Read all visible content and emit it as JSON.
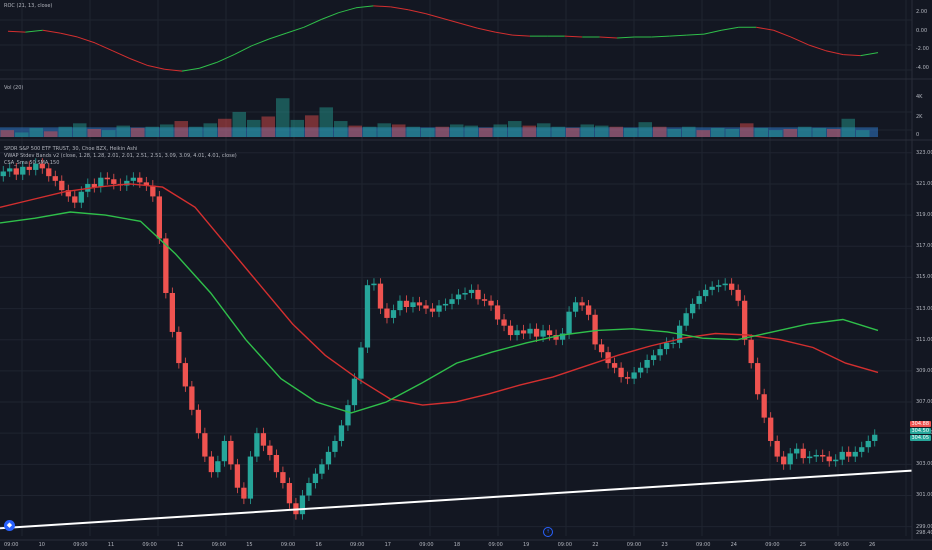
{
  "colors": {
    "background": "#131722",
    "grid": "#1f2430",
    "up": "#26a69a",
    "down": "#ef5350",
    "text": "#b2b5be",
    "trendline": "#ffffff",
    "ma_red": "#d32f2f",
    "ma_green": "#2fbf4a",
    "volume_ma": "#2f79c9"
  },
  "icons": [
    "logo-icon",
    "marker-icon"
  ],
  "panes": {
    "roc": {
      "title": "ROC (21, 13, close)",
      "axis_labels": [
        "2.00",
        "0.00",
        "-2.00",
        "-4.00"
      ]
    },
    "volume": {
      "title": "Vol (20)",
      "axis_labels": [
        "4K",
        "2K",
        "0"
      ]
    },
    "price": {
      "title": "SPDR S&P 500 ETF TRUST, 30, Choe BZX, Heikin Ashi",
      "subtitle": "VWAP Stdev Bands v2 (close, 1.28, 1.28, 2.01, 2.01, 2.51, 2.51, 3.09, 3.09, 4.01, 4.01, close)",
      "subtitle2": "CSA_Sma 50 SMA 150",
      "axis_labels": [
        "323.00",
        "321.00",
        "319.00",
        "317.00",
        "315.00",
        "313.00",
        "311.00",
        "309.00",
        "307.00",
        "305.00",
        "303.00",
        "301.00",
        "299.00",
        "298.40"
      ],
      "price_badges": [
        "304.88",
        "304.50",
        "304.05"
      ]
    }
  },
  "time_axis": {
    "labels": [
      "09:00",
      "10",
      "09:00",
      "11",
      "09:00",
      "12",
      "09:00",
      "15",
      "09:00",
      "16",
      "09:00",
      "17",
      "09:00",
      "18",
      "09:00",
      "19",
      "09:00",
      "22",
      "09:00",
      "23",
      "09:00",
      "24",
      "09:00",
      "25",
      "09:00",
      "26"
    ]
  },
  "chart_data": {
    "type": "candlestick",
    "title": "SPDR S&P 500 ETF TRUST, 30, Choe BZX, Heikin Ashi",
    "y_range": [
      298.4,
      323.5
    ],
    "trendline": {
      "from": 298.9,
      "to": 302.6
    },
    "price_series": [
      321.8,
      322.0,
      321.6,
      322.1,
      321.9,
      322.3,
      322.0,
      321.5,
      321.2,
      320.6,
      320.2,
      319.8,
      320.5,
      321.0,
      320.8,
      321.4,
      321.3,
      321.0,
      320.9,
      321.2,
      321.4,
      321.1,
      320.9,
      320.2,
      317.5,
      314.0,
      311.5,
      309.5,
      308.0,
      306.5,
      305.0,
      303.5,
      302.5,
      303.2,
      304.5,
      303.0,
      301.5,
      300.8,
      303.5,
      305.0,
      304.2,
      303.6,
      302.5,
      301.8,
      300.5,
      299.8,
      301.0,
      301.8,
      302.4,
      303.0,
      303.8,
      304.5,
      305.5,
      306.8,
      308.5,
      310.5,
      314.5,
      314.6,
      313.0,
      312.4,
      312.9,
      313.5,
      313.1,
      313.4,
      313.2,
      313.0,
      312.8,
      313.2,
      313.3,
      313.6,
      313.9,
      314.0,
      314.2,
      313.6,
      313.5,
      313.2,
      312.3,
      311.9,
      311.3,
      311.6,
      311.4,
      311.7,
      311.2,
      311.6,
      311.3,
      311.0,
      311.4,
      312.8,
      313.4,
      313.2,
      312.6,
      310.7,
      310.2,
      309.5,
      309.2,
      308.6,
      308.5,
      308.9,
      309.2,
      309.7,
      310.0,
      310.4,
      310.8,
      310.8,
      311.9,
      312.7,
      313.3,
      313.8,
      314.2,
      314.4,
      314.5,
      314.6,
      314.2,
      313.5,
      311.0,
      309.5,
      307.5,
      306.0,
      304.5,
      303.5,
      303.0,
      303.7,
      304.0,
      303.4,
      303.5,
      303.6,
      303.5,
      303.2,
      303.3,
      303.8,
      303.5,
      303.8,
      304.1,
      304.5,
      304.9
    ],
    "ma_red": [
      319.5,
      320.0,
      320.5,
      320.8,
      321.0,
      320.8,
      319.5,
      317.0,
      314.5,
      312.0,
      310.0,
      308.5,
      307.2,
      306.8,
      307.0,
      307.5,
      308.1,
      308.6,
      309.3,
      310.0,
      310.6,
      311.1,
      311.4,
      311.3,
      311.0,
      310.5,
      309.5,
      308.9
    ],
    "ma_green": [
      318.5,
      318.8,
      319.2,
      319.0,
      318.6,
      316.5,
      314.0,
      311.0,
      308.5,
      307.0,
      306.3,
      307.0,
      308.2,
      309.5,
      310.2,
      310.8,
      311.3,
      311.6,
      311.7,
      311.5,
      311.1,
      311.0,
      311.5,
      312.0,
      312.3,
      311.6
    ],
    "volume": [
      0.6,
      0.4,
      0.8,
      0.5,
      0.9,
      1.2,
      0.7,
      0.6,
      1.0,
      0.8,
      0.9,
      1.1,
      1.4,
      0.9,
      1.2,
      1.6,
      2.2,
      1.5,
      1.8,
      3.4,
      1.5,
      1.9,
      2.6,
      1.4,
      1.0,
      0.9,
      1.2,
      1.1,
      0.9,
      0.8,
      0.9,
      1.1,
      1.0,
      0.8,
      1.1,
      1.4,
      1.0,
      1.2,
      0.9,
      0.8,
      1.1,
      1.0,
      0.9,
      0.8,
      1.3,
      0.9,
      0.7,
      0.9,
      0.6,
      0.8,
      0.7,
      1.2,
      0.8,
      0.6,
      0.7,
      0.9,
      0.8,
      0.7,
      1.6,
      0.6
    ],
    "roc_series": [
      0.2,
      0.1,
      0.3,
      0.0,
      -0.4,
      -1.0,
      -1.8,
      -2.6,
      -3.3,
      -3.7,
      -3.9,
      -3.6,
      -3.0,
      -2.2,
      -1.3,
      -0.6,
      0.0,
      0.6,
      1.4,
      2.1,
      2.6,
      2.8,
      2.7,
      2.4,
      2.0,
      1.5,
      1.0,
      0.5,
      0.1,
      -0.2,
      -0.3,
      -0.3,
      -0.3,
      -0.4,
      -0.4,
      -0.5,
      -0.4,
      -0.4,
      -0.3,
      -0.2,
      -0.1,
      0.3,
      0.6,
      0.6,
      0.3,
      -0.4,
      -1.2,
      -1.8,
      -2.2,
      -2.3,
      -2.0
    ]
  }
}
